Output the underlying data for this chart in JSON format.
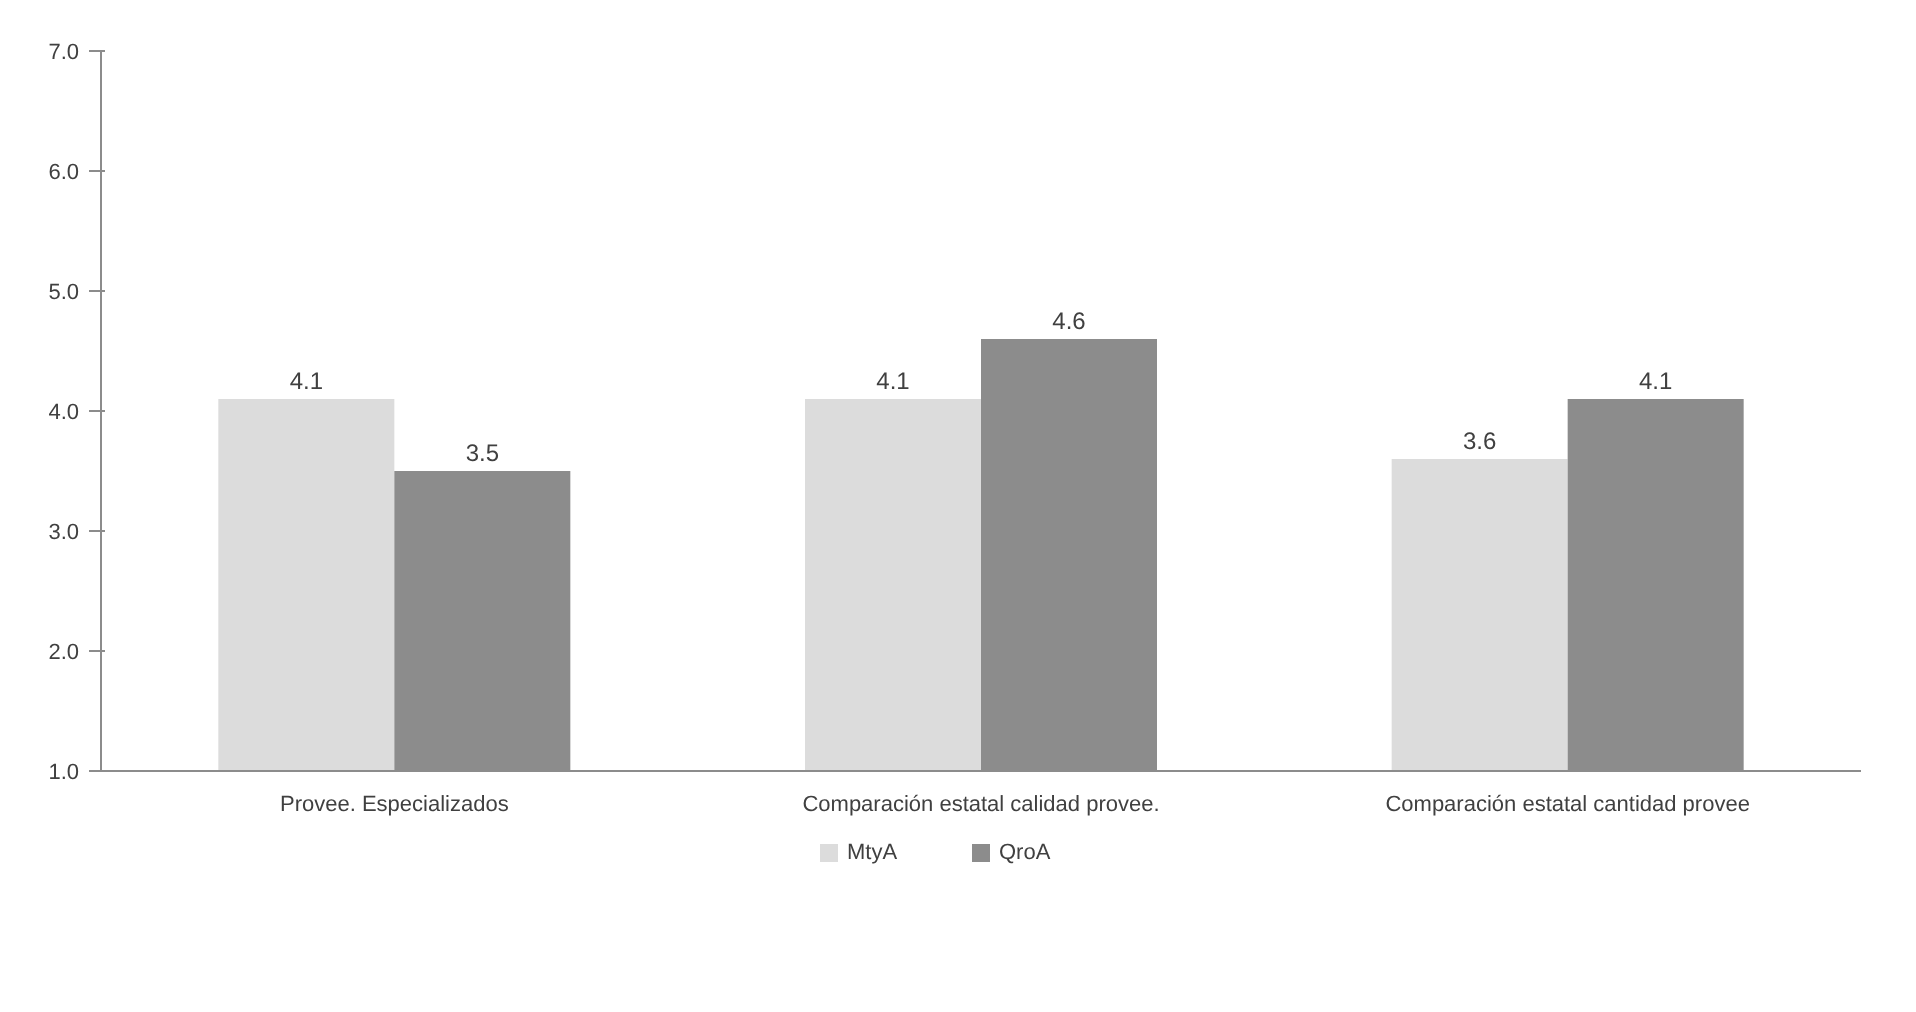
{
  "chart_data": {
    "type": "bar",
    "categories": [
      "Provee. Especializados",
      "Comparación estatal calidad provee.",
      "Comparación estatal cantidad provee"
    ],
    "series": [
      {
        "name": "MtyA",
        "color": "#dcdcdc",
        "values": [
          4.1,
          4.1,
          3.6
        ]
      },
      {
        "name": "QroA",
        "color": "#8c8c8c",
        "values": [
          3.5,
          4.6,
          4.1
        ]
      }
    ],
    "ylim": [
      1.0,
      7.0
    ],
    "yticks": [
      {
        "value": 1,
        "label": "1.0"
      },
      {
        "value": 2,
        "label": "2.0"
      },
      {
        "value": 3,
        "label": "3.0"
      },
      {
        "value": 4,
        "label": "4.0"
      },
      {
        "value": 5,
        "label": "5.0"
      },
      {
        "value": 6,
        "label": "6.0"
      },
      {
        "value": 7,
        "label": "7.0"
      }
    ],
    "data_labels": true,
    "grid": false,
    "legend": "bottom"
  }
}
